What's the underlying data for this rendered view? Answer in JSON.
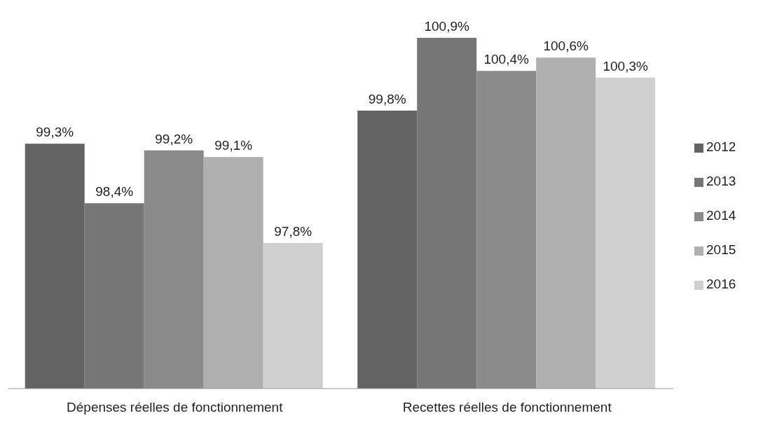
{
  "chart_data": {
    "type": "bar",
    "categories": [
      "Dépenses réelles de fonctionnement",
      "Recettes réelles de fonctionnement"
    ],
    "series": [
      {
        "name": "2012",
        "color": "#636363",
        "values": [
          99.3,
          99.8
        ],
        "value_labels": [
          "99,3%",
          "99,8%"
        ]
      },
      {
        "name": "2013",
        "color": "#767676",
        "values": [
          98.4,
          100.9
        ],
        "value_labels": [
          "98,4%",
          "100,9%"
        ]
      },
      {
        "name": "2014",
        "color": "#8a8a8a",
        "values": [
          99.2,
          100.4
        ],
        "value_labels": [
          "99,2%",
          "100,4%"
        ]
      },
      {
        "name": "2015",
        "color": "#afafaf",
        "values": [
          99.1,
          100.6
        ],
        "value_labels": [
          "99,1%",
          "100,6%"
        ]
      },
      {
        "name": "2016",
        "color": "#d0d0d0",
        "values": [
          97.8,
          100.3
        ],
        "value_labels": [
          "97,8%",
          "100,3%"
        ]
      }
    ],
    "ylim": [
      95.6,
      100.9
    ],
    "tick_labels": "x",
    "legend": "right",
    "grid": false
  }
}
